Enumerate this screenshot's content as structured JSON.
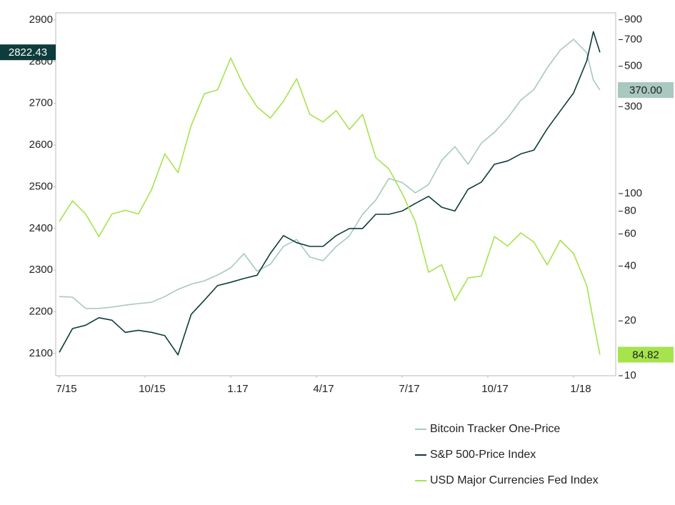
{
  "chart_data": {
    "type": "line",
    "x": [
      0,
      2,
      4,
      6,
      8,
      10,
      12,
      14,
      16,
      18,
      20,
      22,
      24,
      26,
      28,
      30,
      32,
      34,
      36,
      38,
      40,
      42,
      44,
      46,
      48,
      50,
      52,
      54,
      56,
      58,
      60,
      62,
      64,
      66,
      68,
      70,
      72,
      74,
      76,
      78,
      80,
      81,
      82
    ],
    "xlim": [
      0,
      84.8
    ],
    "xticks": [
      {
        "value": 0,
        "label": "7/15"
      },
      {
        "value": 13,
        "label": "10/15"
      },
      {
        "value": 26,
        "label": "1.17"
      },
      {
        "value": 39,
        "label": "4/17"
      },
      {
        "value": 52,
        "label": "7/17"
      },
      {
        "value": 65,
        "label": "10/17"
      },
      {
        "value": 78,
        "label": "1/18"
      }
    ],
    "ylim": [
      2047,
      2917
    ],
    "yticks": [
      2100,
      2200,
      2300,
      2400,
      2500,
      2600,
      2700,
      2800,
      2900
    ],
    "y2lim": [
      10,
      982
    ],
    "y2log": true,
    "y2ticks": [
      10,
      20,
      40,
      60,
      80,
      100,
      300,
      500,
      700,
      900
    ],
    "y3lim": [
      83.7,
      103.0
    ],
    "series": [
      {
        "name": "Bitcoin Tracker One-Price",
        "color": "#a9c8bf",
        "axis": "y2",
        "values": [
          27.2,
          27,
          23.4,
          23.4,
          23.8,
          24.4,
          24.9,
          25.3,
          27.2,
          29.8,
          31.8,
          33.2,
          35.7,
          39.1,
          46.8,
          37.5,
          40.9,
          51.2,
          56,
          44.8,
          42.8,
          51.2,
          58.6,
          76.9,
          92.1,
          121,
          115,
          101,
          112,
          152,
          181,
          145,
          189,
          217,
          260,
          326,
          373,
          490,
          614,
          703,
          593,
          420,
          370
        ],
        "value_labels": [
          null,
          null,
          null,
          null,
          null,
          null,
          null,
          null,
          null,
          null,
          null,
          null,
          null,
          null,
          null,
          null,
          null,
          null,
          null,
          null,
          null,
          null,
          null,
          null,
          null,
          null,
          null,
          null,
          null,
          null,
          null,
          null,
          null,
          null,
          null,
          null,
          null,
          null,
          null,
          null,
          null,
          null,
          "370.00"
        ]
      },
      {
        "name": "S&P 500-Price Index",
        "color": "#0e3b3b",
        "axis": "y",
        "values": [
          2103,
          2160,
          2168,
          2186,
          2180,
          2151,
          2156,
          2151,
          2143,
          2097,
          2194,
          2228,
          2263,
          2271,
          2280,
          2288,
          2340,
          2383,
          2366,
          2357,
          2357,
          2383,
          2400,
          2400,
          2434,
          2434,
          2442,
          2460,
          2477,
          2451,
          2442,
          2494,
          2511,
          2554,
          2562,
          2579,
          2588,
          2639,
          2682,
          2725,
          2802,
          2872,
          2822.43
        ]
      },
      {
        "name": "USD Major Currencies Fed Index",
        "color": "#a6e34c",
        "axis": "y3",
        "values": [
          91.9,
          93.0,
          92.3,
          91.1,
          92.3,
          92.5,
          92.3,
          93.6,
          95.5,
          94.5,
          97.0,
          98.7,
          98.9,
          100.6,
          99.1,
          98.0,
          97.4,
          98.3,
          99.5,
          97.6,
          97.2,
          97.8,
          96.8,
          97.6,
          95.3,
          94.7,
          93.4,
          91.9,
          89.2,
          89.6,
          87.7,
          88.9,
          89.0,
          91.1,
          90.6,
          91.3,
          90.8,
          89.6,
          90.9,
          90.2,
          88.5,
          86.6,
          84.82
        ]
      }
    ],
    "legend": "bottom-right"
  }
}
